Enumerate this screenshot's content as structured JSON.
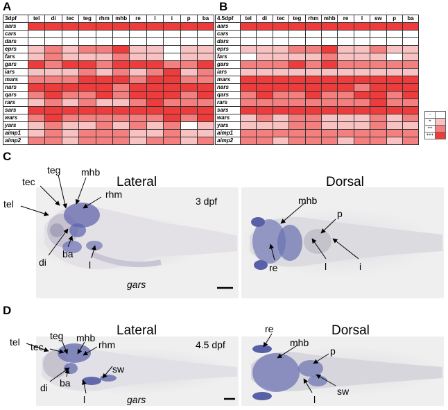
{
  "panels": {
    "a": "A",
    "b": "B",
    "c": "C",
    "d": "D"
  },
  "tableA": {
    "corner": "3dpf",
    "cols": [
      "tel",
      "di",
      "tec",
      "teg",
      "rhm",
      "mhb",
      "re",
      "l",
      "i",
      "p",
      "ba"
    ],
    "rows": [
      {
        "gene": "aars",
        "v": [
          3,
          3,
          3,
          3,
          3,
          3,
          3,
          3,
          3,
          3,
          3
        ]
      },
      {
        "gene": "cars",
        "v": [
          0,
          0,
          0,
          0,
          0,
          0,
          0,
          0,
          0,
          0,
          0
        ]
      },
      {
        "gene": "dars",
        "v": [
          0,
          0,
          0,
          0,
          0,
          0,
          0,
          0,
          0,
          0,
          0
        ]
      },
      {
        "gene": "eprs",
        "v": [
          1,
          2,
          1,
          2,
          2,
          3,
          1,
          1,
          0,
          1,
          1
        ]
      },
      {
        "gene": "fars",
        "v": [
          1,
          2,
          1,
          1,
          1,
          2,
          1,
          1,
          0,
          1,
          1
        ]
      },
      {
        "gene": "gars",
        "v": [
          3,
          2,
          3,
          3,
          2,
          3,
          3,
          3,
          2,
          2,
          3
        ]
      },
      {
        "gene": "iars",
        "v": [
          1,
          1,
          1,
          2,
          1,
          2,
          1,
          2,
          3,
          1,
          2
        ]
      },
      {
        "gene": "mars",
        "v": [
          2,
          2,
          2,
          3,
          3,
          3,
          2,
          3,
          3,
          2,
          2
        ]
      },
      {
        "gene": "nars",
        "v": [
          3,
          3,
          3,
          3,
          3,
          2,
          3,
          3,
          3,
          3,
          3
        ]
      },
      {
        "gene": "qars",
        "v": [
          2,
          3,
          2,
          2,
          3,
          2,
          3,
          3,
          3,
          2,
          3
        ]
      },
      {
        "gene": "rars",
        "v": [
          1,
          2,
          1,
          2,
          1,
          1,
          2,
          3,
          2,
          2,
          2
        ]
      },
      {
        "gene": "sars",
        "v": [
          3,
          3,
          3,
          3,
          3,
          3,
          3,
          3,
          3,
          3,
          3
        ]
      },
      {
        "gene": "wars",
        "v": [
          2,
          3,
          2,
          2,
          2,
          2,
          2,
          2,
          3,
          2,
          3
        ]
      },
      {
        "gene": "yars",
        "v": [
          1,
          2,
          1,
          1,
          2,
          1,
          2,
          1,
          2,
          0,
          1
        ]
      },
      {
        "gene": "aimp1",
        "v": [
          1,
          2,
          1,
          2,
          2,
          2,
          1,
          1,
          2,
          1,
          1
        ]
      },
      {
        "gene": "aimp2",
        "v": [
          2,
          2,
          1,
          2,
          2,
          2,
          1,
          2,
          2,
          1,
          2
        ]
      }
    ]
  },
  "tableB": {
    "corner": "4.5dpf",
    "cols": [
      "tel",
      "di",
      "tec",
      "teg",
      "rhm",
      "mhb",
      "re",
      "l",
      "sw",
      "p",
      "ba"
    ],
    "rows": [
      {
        "gene": "aars",
        "v": [
          3,
          3,
          3,
          3,
          3,
          3,
          3,
          3,
          3,
          3,
          3
        ]
      },
      {
        "gene": "cars",
        "v": [
          0,
          0,
          0,
          0,
          0,
          0,
          0,
          0,
          0,
          0,
          0
        ]
      },
      {
        "gene": "dars",
        "v": [
          0,
          0,
          0,
          0,
          0,
          0,
          0,
          0,
          0,
          0,
          0
        ]
      },
      {
        "gene": "eprs",
        "v": [
          1,
          1,
          1,
          2,
          2,
          3,
          1,
          1,
          2,
          1,
          1
        ]
      },
      {
        "gene": "fars",
        "v": [
          0,
          1,
          1,
          1,
          1,
          2,
          1,
          1,
          1,
          0,
          1
        ]
      },
      {
        "gene": "gars",
        "v": [
          2,
          2,
          2,
          3,
          2,
          3,
          2,
          2,
          2,
          2,
          2
        ]
      },
      {
        "gene": "iars",
        "v": [
          1,
          1,
          1,
          1,
          1,
          1,
          1,
          1,
          1,
          1,
          1
        ]
      },
      {
        "gene": "mars",
        "v": [
          3,
          3,
          3,
          3,
          3,
          3,
          3,
          3,
          3,
          3,
          3
        ]
      },
      {
        "gene": "nars",
        "v": [
          3,
          3,
          3,
          3,
          3,
          3,
          3,
          2,
          3,
          3,
          3
        ]
      },
      {
        "gene": "qars",
        "v": [
          2,
          3,
          2,
          2,
          3,
          2,
          2,
          3,
          3,
          2,
          3
        ]
      },
      {
        "gene": "rars",
        "v": [
          2,
          2,
          2,
          2,
          2,
          2,
          2,
          2,
          3,
          2,
          2
        ]
      },
      {
        "gene": "sars",
        "v": [
          3,
          3,
          3,
          3,
          3,
          3,
          3,
          3,
          3,
          3,
          3
        ]
      },
      {
        "gene": "wars",
        "v": [
          1,
          2,
          1,
          2,
          2,
          1,
          1,
          1,
          2,
          1,
          2
        ]
      },
      {
        "gene": "yars",
        "v": [
          1,
          1,
          1,
          2,
          2,
          1,
          1,
          1,
          2,
          1,
          1
        ]
      },
      {
        "gene": "aimp1",
        "v": [
          2,
          2,
          2,
          2,
          2,
          2,
          2,
          2,
          2,
          2,
          2
        ]
      },
      {
        "gene": "aimp2",
        "v": [
          2,
          2,
          1,
          2,
          2,
          2,
          1,
          2,
          2,
          1,
          2
        ]
      }
    ]
  },
  "legend": [
    {
      "label": "-",
      "level": 0
    },
    {
      "label": "+",
      "level": 1
    },
    {
      "label": "++",
      "level": 2
    },
    {
      "label": "+++",
      "level": 3
    }
  ],
  "levelColors": [
    "#ffffff",
    "#f9c2c2",
    "#f47f7f",
    "#ee3b3b"
  ],
  "panelC": {
    "lateral": "Lateral",
    "dorsal": "Dorsal",
    "stage": "3 dpf",
    "gene": "gars",
    "lat": {
      "tel": "tel",
      "tec": "tec",
      "teg": "teg",
      "mhb": "mhb",
      "rhm": "rhm",
      "di": "di",
      "ba": "ba",
      "l": "l"
    },
    "dor": {
      "mhb": "mhb",
      "p": "p",
      "re": "re",
      "l": "l",
      "i": "i"
    }
  },
  "panelD": {
    "lateral": "Lateral",
    "dorsal": "Dorsal",
    "stage": "4.5 dpf",
    "gene": "gars",
    "lat": {
      "tel": "tel",
      "tec": "tec",
      "teg": "teg",
      "mhb": "mhb",
      "rhm": "rhm",
      "sw": "sw",
      "di": "di",
      "ba": "ba",
      "l": "l"
    },
    "dor": {
      "re": "re",
      "mhb": "mhb",
      "p": "p",
      "sw": "sw",
      "l": "l"
    }
  }
}
